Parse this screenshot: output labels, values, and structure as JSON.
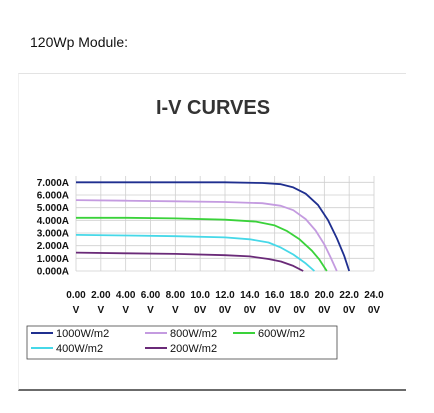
{
  "heading": "120Wp Module:",
  "chart_data": {
    "type": "line",
    "title": "I-V CURVES",
    "xlabel": "",
    "ylabel": "",
    "xlim": [
      0,
      24
    ],
    "ylim": [
      0,
      7.5
    ],
    "grid": true,
    "legend_position": "bottom-left",
    "x_ticks": [
      0,
      2,
      4,
      6,
      8,
      10,
      12,
      14,
      16,
      18,
      20,
      22,
      24
    ],
    "x_tick_labels_top": [
      "0.00",
      "2.00",
      "4.00",
      "6.00",
      "8.00",
      "10.0",
      "12.0",
      "14.0",
      "16.0",
      "18.0",
      "20.0",
      "22.0",
      "24.0"
    ],
    "x_tick_labels_bottom": [
      "V",
      "V",
      "V",
      "V",
      "V",
      "0V",
      "0V",
      "0V",
      "0V",
      "0V",
      "0V",
      "0V",
      "0V"
    ],
    "y_ticks": [
      0,
      1,
      2,
      3,
      4,
      5,
      6,
      7
    ],
    "y_tick_labels": [
      "0.000A",
      "1.000A",
      "2.000A",
      "3.000A",
      "4.000A",
      "5.000A",
      "6.000A",
      "7.000A"
    ],
    "series": [
      {
        "name": "1000W/m2",
        "color": "#1f2f8f",
        "x": [
          0,
          4,
          8,
          12,
          15,
          16.5,
          17.5,
          18.5,
          19.5,
          20.3,
          21.0,
          21.6,
          22.0
        ],
        "y": [
          7.0,
          7.0,
          7.0,
          7.0,
          6.95,
          6.85,
          6.6,
          6.1,
          5.2,
          4.0,
          2.6,
          1.2,
          0.0
        ]
      },
      {
        "name": "800W/m2",
        "color": "#c49be0",
        "x": [
          0,
          4,
          8,
          12,
          15,
          16.5,
          17.5,
          18.5,
          19.3,
          20.0,
          20.5,
          21.0
        ],
        "y": [
          5.6,
          5.55,
          5.5,
          5.45,
          5.35,
          5.15,
          4.8,
          4.1,
          3.2,
          2.1,
          1.1,
          0.0
        ]
      },
      {
        "name": "600W/m2",
        "color": "#3ad23a",
        "x": [
          0,
          4,
          8,
          12,
          14.5,
          16,
          17,
          18,
          19,
          19.6,
          20.2
        ],
        "y": [
          4.2,
          4.2,
          4.15,
          4.05,
          3.9,
          3.6,
          3.15,
          2.5,
          1.6,
          0.9,
          0.0
        ]
      },
      {
        "name": "400W/m2",
        "color": "#46d8e8",
        "x": [
          0,
          4,
          8,
          12,
          14,
          15.5,
          16.5,
          17.5,
          18.5,
          19.2
        ],
        "y": [
          2.85,
          2.8,
          2.75,
          2.65,
          2.5,
          2.25,
          1.85,
          1.3,
          0.6,
          0.0
        ]
      },
      {
        "name": "200W/m2",
        "color": "#6a2a78",
        "x": [
          0,
          4,
          8,
          12,
          14,
          15.5,
          16.5,
          17.5,
          18.3
        ],
        "y": [
          1.45,
          1.4,
          1.35,
          1.25,
          1.15,
          0.95,
          0.75,
          0.4,
          0.0
        ]
      }
    ]
  }
}
